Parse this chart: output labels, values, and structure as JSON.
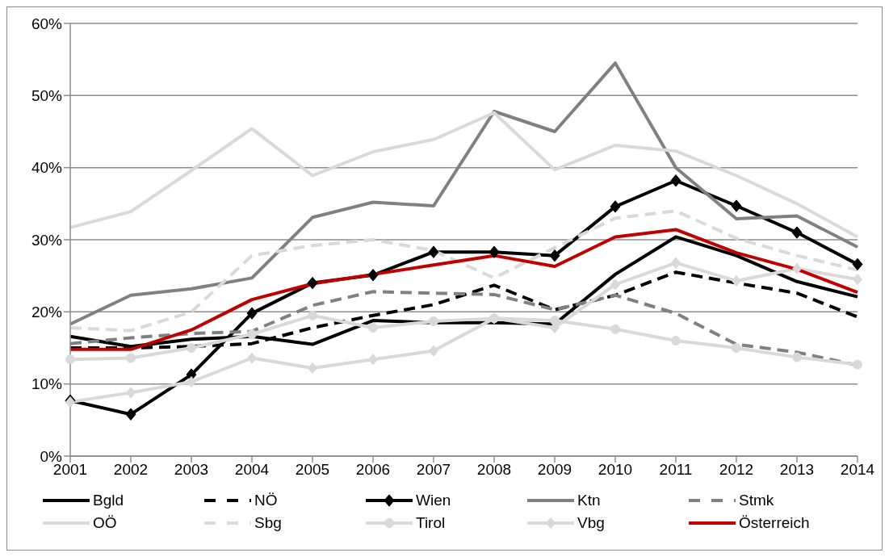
{
  "chart_data": {
    "type": "line",
    "categories": [
      "2001",
      "2002",
      "2003",
      "2004",
      "2005",
      "2006",
      "2007",
      "2008",
      "2009",
      "2010",
      "2011",
      "2012",
      "2013",
      "2014"
    ],
    "ylim": [
      0,
      60
    ],
    "yticks": [
      {
        "value": 0,
        "label": "0%"
      },
      {
        "value": 10,
        "label": "10%"
      },
      {
        "value": 20,
        "label": "20%"
      },
      {
        "value": 30,
        "label": "30%"
      },
      {
        "value": 40,
        "label": "40%"
      },
      {
        "value": 50,
        "label": "50%"
      },
      {
        "value": 60,
        "label": "60%"
      }
    ],
    "grid": "y",
    "legend": "bottom",
    "series": [
      {
        "name": "Bgld",
        "color": "#000000",
        "line_style": "solid",
        "marker": "none",
        "values": [
          16.6,
          15.2,
          16.2,
          16.6,
          15.5,
          18.8,
          18.5,
          18.5,
          18.3,
          25.2,
          30.4,
          27.8,
          24.2,
          22.1
        ]
      },
      {
        "name": "NÖ",
        "color": "#000000",
        "line_style": "dashed",
        "marker": "none",
        "values": [
          15.0,
          15.0,
          15.2,
          15.6,
          17.8,
          19.5,
          21.0,
          23.7,
          20.3,
          22.3,
          25.5,
          24.0,
          22.6,
          19.3
        ]
      },
      {
        "name": "Wien",
        "color": "#000000",
        "line_style": "solid",
        "marker": "diamond",
        "values": [
          7.7,
          5.8,
          11.3,
          19.8,
          24.0,
          25.1,
          28.3,
          28.3,
          27.8,
          34.6,
          38.2,
          34.7,
          31.0,
          26.6
        ]
      },
      {
        "name": "Ktn",
        "color": "#808080",
        "line_style": "solid",
        "marker": "none",
        "values": [
          18.3,
          22.3,
          23.2,
          24.7,
          33.1,
          35.2,
          34.7,
          47.8,
          45.0,
          54.5,
          40.0,
          32.9,
          33.3,
          29.0
        ]
      },
      {
        "name": "Stmk",
        "color": "#808080",
        "line_style": "dashed",
        "marker": "none",
        "values": [
          15.6,
          16.4,
          17.0,
          17.3,
          20.9,
          22.8,
          22.6,
          22.4,
          20.3,
          22.3,
          19.8,
          15.5,
          14.4,
          12.6
        ]
      },
      {
        "name": "OÖ",
        "color": "#d9d9d9",
        "line_style": "solid",
        "marker": "none",
        "values": [
          31.7,
          33.9,
          39.6,
          45.4,
          38.9,
          42.2,
          43.9,
          47.6,
          39.7,
          43.1,
          42.3,
          38.9,
          35.0,
          30.4
        ]
      },
      {
        "name": "Sbg",
        "color": "#d9d9d9",
        "line_style": "dashed",
        "marker": "none",
        "values": [
          17.8,
          17.4,
          20.0,
          27.8,
          29.2,
          30.0,
          28.5,
          24.7,
          28.9,
          33.0,
          34.0,
          30.2,
          27.8,
          25.8
        ]
      },
      {
        "name": "Tirol",
        "color": "#d9d9d9",
        "line_style": "solid",
        "marker": "circle",
        "values": [
          13.4,
          13.6,
          15.0,
          16.9,
          19.5,
          17.8,
          18.7,
          19.1,
          18.8,
          17.6,
          16.0,
          15.0,
          13.7,
          12.7
        ]
      },
      {
        "name": "Vbg",
        "color": "#d9d9d9",
        "line_style": "solid",
        "marker": "diamond",
        "values": [
          7.5,
          8.8,
          10.3,
          13.6,
          12.2,
          13.4,
          14.6,
          19.1,
          17.8,
          23.8,
          26.8,
          24.3,
          26.0,
          24.5
        ]
      },
      {
        "name": "Österreich",
        "color": "#c00000",
        "line_style": "solid",
        "marker": "none",
        "values": [
          14.8,
          14.8,
          17.5,
          21.7,
          23.9,
          25.2,
          26.5,
          27.8,
          26.3,
          30.4,
          31.4,
          28.2,
          25.9,
          22.7
        ]
      }
    ]
  }
}
